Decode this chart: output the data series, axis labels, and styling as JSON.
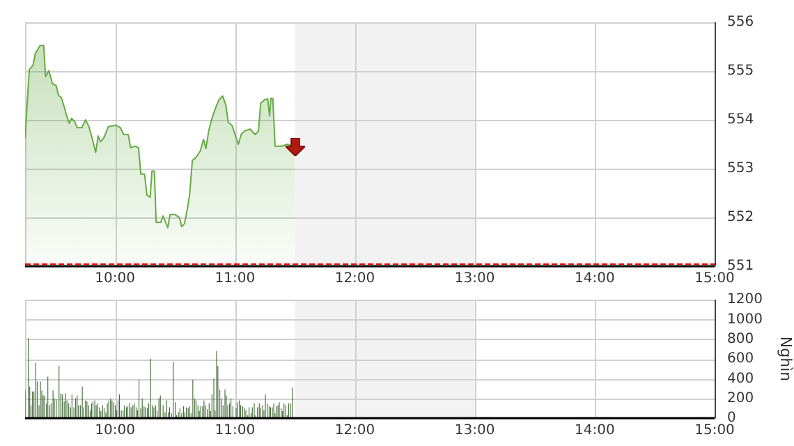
{
  "chart_data": [
    {
      "type": "area",
      "xlim": [
        9.25,
        15
      ],
      "xticks": [
        {
          "value": 10,
          "label": "10:00"
        },
        {
          "value": 11,
          "label": "11:00"
        },
        {
          "value": 12,
          "label": "12:00"
        },
        {
          "value": 13,
          "label": "13:00"
        },
        {
          "value": 14,
          "label": "14:00"
        },
        {
          "value": 15,
          "label": "15:00"
        }
      ],
      "ylim": [
        551,
        556
      ],
      "yticks": [
        551,
        552,
        553,
        554,
        555,
        556
      ],
      "grid": true,
      "legend": false,
      "bands": [
        {
          "axis": "x",
          "from": 11.5,
          "to": 13,
          "color": "#f2f2f2"
        }
      ],
      "ref_lines": [
        {
          "axis": "y",
          "value": 551.05,
          "color": "#ff0000",
          "line_style": "dashed"
        }
      ],
      "series": [
        {
          "color": "#66aa44",
          "x": [
            9.25,
            9.285,
            9.316,
            9.335,
            9.374,
            9.405,
            9.421,
            9.448,
            9.479,
            9.51,
            9.529,
            9.552,
            9.576,
            9.595,
            9.618,
            9.638,
            9.665,
            9.684,
            9.723,
            9.754,
            9.781,
            9.812,
            9.839,
            9.859,
            9.878,
            9.905,
            9.944,
            10.006,
            10.045,
            10.072,
            10.11,
            10.13,
            10.169,
            10.196,
            10.215,
            10.246,
            10.266,
            10.293,
            10.308,
            10.328,
            10.343,
            10.382,
            10.401,
            10.44,
            10.459,
            10.498,
            10.537,
            10.556,
            10.579,
            10.603,
            10.622,
            10.645,
            10.672,
            10.711,
            10.738,
            10.758,
            10.781,
            10.808,
            10.835,
            10.866,
            10.897,
            10.924,
            10.944,
            10.975,
            11.029,
            11.052,
            11.079,
            11.126,
            11.169,
            11.196,
            11.215,
            11.246,
            11.273,
            11.289,
            11.3,
            11.316,
            11.335,
            11.39,
            11.44,
            11.5
          ],
          "values": [
            553.62,
            555.03,
            555.12,
            555.36,
            555.52,
            555.53,
            554.89,
            555.01,
            554.74,
            554.7,
            554.5,
            554.46,
            554.27,
            554.1,
            553.93,
            554.03,
            553.96,
            553.84,
            553.84,
            554.0,
            553.87,
            553.6,
            553.33,
            553.67,
            553.55,
            553.62,
            553.86,
            553.89,
            553.84,
            553.7,
            553.7,
            553.43,
            553.46,
            553.43,
            552.89,
            552.89,
            552.46,
            552.41,
            552.95,
            552.95,
            551.9,
            551.9,
            552.03,
            551.79,
            552.06,
            552.06,
            552.0,
            551.81,
            551.87,
            552.17,
            552.46,
            553.17,
            553.22,
            553.36,
            553.6,
            553.41,
            553.77,
            554.03,
            554.22,
            554.41,
            554.49,
            554.31,
            553.95,
            553.89,
            553.5,
            553.7,
            553.77,
            553.81,
            553.7,
            553.77,
            554.34,
            554.41,
            554.43,
            554.08,
            554.44,
            554.44,
            553.46,
            553.46,
            553.5,
            553.43
          ]
        }
      ]
    },
    {
      "type": "bar",
      "ylabel": "Nghìn",
      "xlim": [
        9.25,
        15
      ],
      "xticks": [
        {
          "value": 10,
          "label": "10:00"
        },
        {
          "value": 11,
          "label": "11:00"
        },
        {
          "value": 12,
          "label": "12:00"
        },
        {
          "value": 13,
          "label": "13:00"
        },
        {
          "value": 14,
          "label": "14:00"
        },
        {
          "value": 15,
          "label": "15:00"
        }
      ],
      "ylim": [
        0,
        1200
      ],
      "yticks": [
        0,
        200,
        400,
        600,
        800,
        1000,
        1200
      ],
      "grid": true,
      "legend": false,
      "bands": [
        {
          "axis": "x",
          "from": 11.5,
          "to": 13,
          "color": "#f2f2f2"
        }
      ],
      "series": [
        {
          "color": "#3d6630",
          "x": [
            9.25,
            9.277,
            9.289,
            9.3,
            9.312,
            9.324,
            9.339,
            9.351,
            9.366,
            9.378,
            9.39,
            9.401,
            9.413,
            9.428,
            9.44,
            9.455,
            9.467,
            9.483,
            9.494,
            9.51,
            9.533,
            9.548,
            9.56,
            9.576,
            9.587,
            9.599,
            9.614,
            9.63,
            9.641,
            9.657,
            9.672,
            9.684,
            9.696,
            9.711,
            9.727,
            9.738,
            9.754,
            9.766,
            9.781,
            9.793,
            9.804,
            9.816,
            9.831,
            9.843,
            9.855,
            9.87,
            9.882,
            9.897,
            9.909,
            9.924,
            9.936,
            9.948,
            9.963,
            9.975,
            9.99,
            10.002,
            10.014,
            10.025,
            10.037,
            10.052,
            10.068,
            10.079,
            10.095,
            10.107,
            10.122,
            10.134,
            10.149,
            10.161,
            10.176,
            10.188,
            10.2,
            10.215,
            10.227,
            10.242,
            10.254,
            10.269,
            10.281,
            10.297,
            10.312,
            10.324,
            10.339,
            10.351,
            10.366,
            10.378,
            10.401,
            10.417,
            10.432,
            10.444,
            10.455,
            10.471,
            10.486,
            10.502,
            10.514,
            10.529,
            10.541,
            10.556,
            10.572,
            10.583,
            10.595,
            10.61,
            10.622,
            10.634,
            10.649,
            10.665,
            10.676,
            10.692,
            10.703,
            10.715,
            10.731,
            10.742,
            10.754,
            10.769,
            10.785,
            10.797,
            10.808,
            10.824,
            10.835,
            10.847,
            10.858,
            10.874,
            10.89,
            10.901,
            10.917,
            10.928,
            10.94,
            10.955,
            10.967,
            10.983,
            11.01,
            11.021,
            11.037,
            11.048,
            11.064,
            11.079,
            11.091,
            11.107,
            11.118,
            11.134,
            11.145,
            11.161,
            11.172,
            11.188,
            11.203,
            11.215,
            11.231,
            11.242,
            11.254,
            11.269,
            11.285,
            11.297,
            11.312,
            11.324,
            11.335,
            11.347,
            11.359,
            11.37,
            11.386,
            11.397,
            11.409,
            11.424,
            11.436,
            11.448,
            11.463,
            11.479
          ],
          "values": [
            280,
            810,
            320,
            130,
            270,
            270,
            560,
            370,
            130,
            370,
            280,
            230,
            230,
            150,
            420,
            130,
            150,
            280,
            200,
            190,
            530,
            250,
            240,
            170,
            250,
            180,
            150,
            110,
            240,
            110,
            200,
            230,
            130,
            130,
            320,
            110,
            180,
            170,
            130,
            80,
            150,
            170,
            180,
            130,
            150,
            110,
            70,
            130,
            100,
            60,
            150,
            180,
            200,
            180,
            160,
            130,
            80,
            180,
            240,
            80,
            80,
            130,
            110,
            120,
            150,
            110,
            130,
            150,
            110,
            80,
            390,
            100,
            200,
            120,
            110,
            100,
            150,
            600,
            130,
            110,
            130,
            70,
            200,
            230,
            130,
            60,
            180,
            60,
            110,
            50,
            570,
            160,
            30,
            60,
            100,
            50,
            120,
            60,
            110,
            100,
            120,
            50,
            390,
            200,
            180,
            130,
            70,
            120,
            120,
            180,
            130,
            90,
            150,
            70,
            240,
            400,
            80,
            680,
            530,
            290,
            200,
            130,
            290,
            230,
            130,
            150,
            200,
            120,
            100,
            160,
            180,
            130,
            120,
            100,
            80,
            30,
            110,
            50,
            110,
            150,
            30,
            110,
            150,
            110,
            130,
            80,
            240,
            150,
            120,
            110,
            110,
            150,
            50,
            120,
            130,
            160,
            100,
            70,
            150,
            130,
            30,
            150,
            150,
            310
          ]
        }
      ]
    }
  ]
}
